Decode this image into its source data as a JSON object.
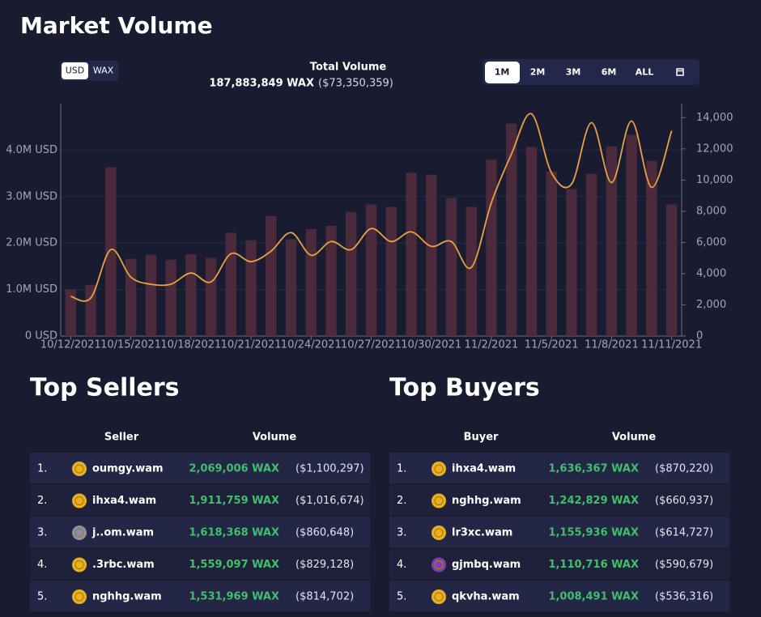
{
  "header": {
    "title": "Market Volume"
  },
  "currency_toggle": [
    "USD",
    "WAX"
  ],
  "total": {
    "label": "Total Volume",
    "wax": "187,883,849 WAX",
    "usd": "($73,350,359)"
  },
  "ranges": [
    "1M",
    "2M",
    "3M",
    "6M",
    "ALL"
  ],
  "chart_data": {
    "type": "bar",
    "categories": [
      "10/12/2021",
      null,
      null,
      "10/15/2021",
      null,
      null,
      "10/18/2021",
      null,
      null,
      "10/21/2021",
      null,
      null,
      "10/24/2021",
      null,
      null,
      "10/27/2021",
      null,
      null,
      "10/30/2021",
      null,
      null,
      "11/2/2021",
      null,
      null,
      "11/5/2021",
      null,
      null,
      "11/8/2021",
      null,
      null,
      "11/11/2021"
    ],
    "series": [
      {
        "type": "bar",
        "color": "#4b2a3c",
        "values": [
          1000000,
          1100000,
          3630000,
          1660000,
          1750000,
          1640000,
          1760000,
          1680000,
          2220000,
          2060000,
          2580000,
          2080000,
          2300000,
          2370000,
          2670000,
          2830000,
          2780000,
          3510000,
          3470000,
          2970000,
          2780000,
          3790000,
          4570000,
          4070000,
          3540000,
          3160000,
          3490000,
          4080000,
          4330000,
          3770000,
          2830000
        ]
      },
      {
        "type": "line",
        "axis": "y2",
        "color": "#eba13f",
        "values": [
          2540,
          2440,
          5540,
          3780,
          3320,
          3320,
          4040,
          3470,
          5280,
          4770,
          5440,
          6630,
          5180,
          6060,
          5540,
          6890,
          6060,
          6680,
          5750,
          6060,
          4400,
          8550,
          11660,
          14250,
          10470,
          9740,
          13680,
          9840,
          13780,
          9530,
          13160
        ]
      }
    ],
    "ylim": [
      0,
      5000000
    ],
    "yticks": [
      {
        "value": 0,
        "label": "0 USD"
      },
      {
        "value": 1000000,
        "label": "1.0M USD"
      },
      {
        "value": 2000000,
        "label": "2.0M USD"
      },
      {
        "value": 3000000,
        "label": "3.0M USD"
      },
      {
        "value": 4000000,
        "label": "4.0M USD"
      }
    ],
    "y2lim": [
      0,
      14900
    ],
    "y2ticks": [
      0,
      {
        "value": 2000,
        "label": "2,000"
      },
      {
        "value": 4000,
        "label": "4,000"
      },
      {
        "value": 6000,
        "label": "6,000"
      },
      {
        "value": 8000,
        "label": "8,000"
      },
      {
        "value": 10000,
        "label": "10,000"
      },
      {
        "value": 12000,
        "label": "12,000"
      },
      {
        "value": 14000,
        "label": "14,000"
      }
    ],
    "grid": true
  },
  "sellers": {
    "title": "Top Sellers",
    "columns": [
      "Seller",
      "Volume"
    ],
    "rows": [
      [
        "1.",
        "oumgy.wam",
        "2,069,006 WAX",
        "($1,100,297)"
      ],
      [
        "2.",
        "ihxa4.wam",
        "1,911,759 WAX",
        "($1,016,674)"
      ],
      [
        "3.",
        "j..om.wam",
        "1,618,368 WAX",
        "($860,648)"
      ],
      [
        "4.",
        ".3rbc.wam",
        "1,559,097 WAX",
        "($829,128)"
      ],
      [
        "5.",
        "nghhg.wam",
        "1,531,969 WAX",
        "($814,702)"
      ]
    ]
  },
  "buyers": {
    "title": "Top Buyers",
    "columns": [
      "Buyer",
      "Volume"
    ],
    "rows": [
      [
        "1.",
        "ihxa4.wam",
        "1,636,367 WAX",
        "($870,220)"
      ],
      [
        "2.",
        "nghhg.wam",
        "1,242,829 WAX",
        "($660,937)"
      ],
      [
        "3.",
        "lr3xc.wam",
        "1,155,936 WAX",
        "($614,727)"
      ],
      [
        "4.",
        "gjmbq.wam",
        "1,110,716 WAX",
        "($590,679)"
      ],
      [
        "5.",
        "qkvha.wam",
        "1,008,491 WAX",
        "($536,316)"
      ]
    ]
  }
}
